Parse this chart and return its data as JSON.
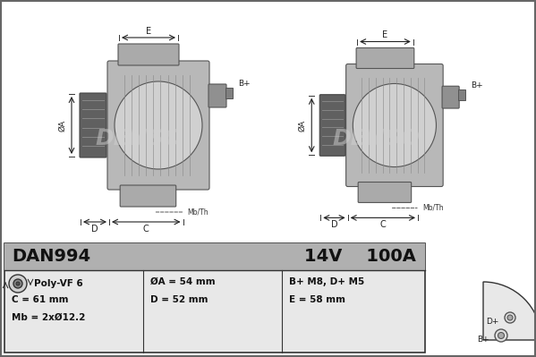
{
  "bg_color": "#ffffff",
  "border_color": "#000000",
  "gray_header": "#c0c0c0",
  "table_bg": "#e8e8e8",
  "part_number": "DAN994",
  "voltage": "14V",
  "current": "100A",
  "pulley_type": "Poly-VF 6",
  "specs": [
    [
      "ØA = 54 mm",
      "B+ M8, D+ M5"
    ],
    [
      "C = 61 mm",
      "D = 52 mm",
      "E = 58 mm"
    ],
    [
      "Mb = 2xØ12.2",
      "",
      ""
    ]
  ],
  "col1_specs": [
    "ØA = 54 mm",
    "D = 52 mm"
  ],
  "col2_specs": [
    "B+ M8, D+ M5",
    "E = 58 mm"
  ],
  "row1_col1": "ØA = 54 mm",
  "row1_col2": "B+ M8, D+ M5",
  "row2_col1": "D = 52 mm",
  "row2_col2": "E = 58 mm",
  "denso_watermark_color": "#d0d0d0"
}
